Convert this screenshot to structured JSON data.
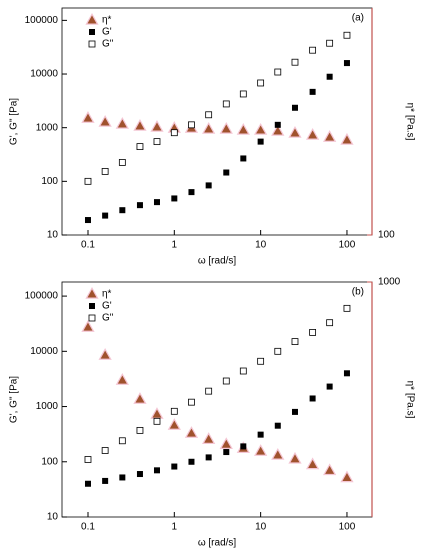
{
  "chart_data": [
    {
      "type": "scatter",
      "panel_label": "(a)",
      "x_label": "ω [rad/s]",
      "y_label": "G', G\" [Pa]",
      "y2_label": "η* [Pa.s]",
      "xscale": "log",
      "yscale": "log",
      "y2scale": "log",
      "xlim": [
        0.05,
        195
      ],
      "xticks": [
        0.1,
        1,
        10,
        100
      ],
      "ylim": [
        10,
        170000
      ],
      "yticks": [
        10,
        100,
        1000,
        10000,
        100000
      ],
      "y2lim": [
        100,
        6000
      ],
      "y2ticks": [
        100
      ],
      "y2color": "#c0504d",
      "legend": "upper left",
      "x": [
        0.1,
        0.158,
        0.25,
        0.4,
        0.63,
        1,
        1.58,
        2.5,
        4,
        6.3,
        10,
        15.8,
        25,
        40,
        63,
        100
      ],
      "series": [
        {
          "name": "η*",
          "color": "#a0522d",
          "marker": "triangle",
          "axis": "y2",
          "values": [
            824,
            767,
            740,
            714,
            701,
            688,
            688,
            676,
            676,
            664,
            664,
            652,
            629,
            607,
            585,
            555
          ]
        },
        {
          "name": "G'",
          "color": "#000000",
          "marker": "square",
          "values": [
            19,
            23,
            29,
            36,
            41,
            48,
            63,
            84,
            146,
            267,
            550,
            1130,
            2350,
            4650,
            8900,
            16000
          ]
        },
        {
          "name": "G\"",
          "color": "#000000",
          "marker": "open-square",
          "values": [
            100,
            153,
            225,
            444,
            550,
            806,
            1130,
            1740,
            2770,
            4250,
            6810,
            10900,
            16600,
            27800,
            37500,
            52800
          ]
        }
      ]
    },
    {
      "type": "scatter",
      "panel_label": "(b)",
      "x_label": "ω [rad/s]",
      "y_label": "G', G\" [Pa]",
      "y2_label": "η* [Pa.s]",
      "xscale": "log",
      "yscale": "log",
      "y2scale": "log",
      "xlim": [
        0.05,
        195
      ],
      "xticks": [
        0.1,
        1,
        10,
        100
      ],
      "ylim": [
        10,
        180000
      ],
      "yticks": [
        10,
        100,
        1000,
        10000,
        100000
      ],
      "y2lim": [
        0.056,
        1000
      ],
      "y2ticks": [
        1000
      ],
      "y2color": "#c0504d",
      "legend": "upper left",
      "x": [
        0.1,
        0.158,
        0.25,
        0.4,
        0.63,
        1,
        1.58,
        2.5,
        4,
        6.3,
        10,
        15.8,
        25,
        40,
        63,
        100
      ],
      "series": [
        {
          "name": "η*",
          "color": "#a0522d",
          "marker": "triangle",
          "axis": "y2",
          "values": [
            153,
            47.6,
            16.8,
            7.6,
            4.06,
            2.57,
            1.84,
            1.43,
            1.16,
            0.98,
            0.87,
            0.74,
            0.63,
            0.5,
            0.39,
            0.29
          ]
        },
        {
          "name": "G'",
          "color": "#000000",
          "marker": "square",
          "values": [
            40,
            45,
            52,
            60,
            70,
            82,
            100,
            120,
            150,
            190,
            310,
            450,
            800,
            1400,
            2300,
            4000
          ]
        },
        {
          "name": "G\"",
          "color": "#000000",
          "marker": "open-square",
          "values": [
            110,
            160,
            240,
            370,
            540,
            820,
            1200,
            1900,
            2900,
            4400,
            6600,
            10000,
            15000,
            22000,
            33000,
            60000
          ]
        }
      ]
    }
  ]
}
